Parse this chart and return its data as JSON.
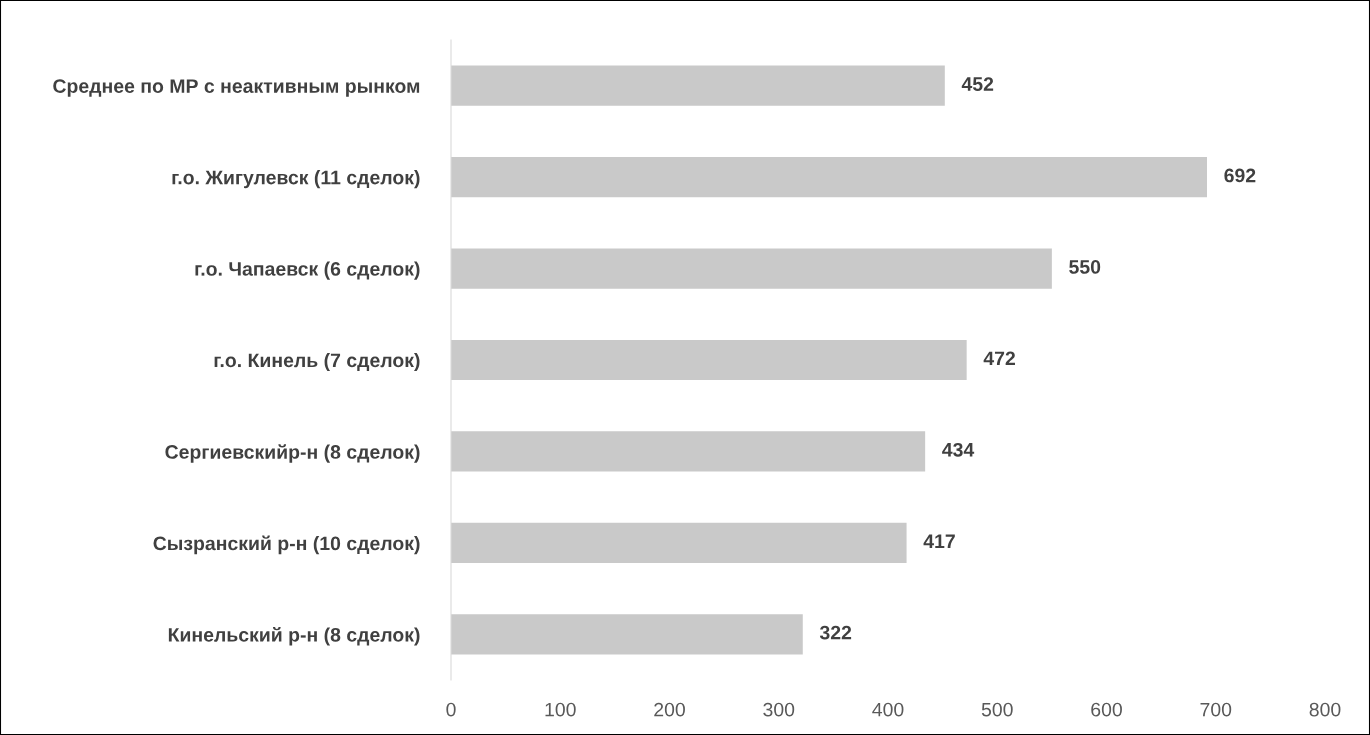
{
  "chart_data": {
    "type": "bar",
    "orientation": "horizontal",
    "categories": [
      "Среднее по МР с неактивным рынком",
      "г.о. Жигулевск (11 сделок)",
      "г.о. Чапаевск (6 сделок)",
      "г.о. Кинель (7 сделок)",
      "Сергиевскийр-н (8 сделок)",
      "Сызранский р-н (10 сделок)",
      "Кинельский р-н (8 сделок)"
    ],
    "values": [
      452,
      692,
      550,
      472,
      434,
      417,
      322
    ],
    "color": "#c9c9c9",
    "xlim": [
      0,
      800
    ],
    "xticks": [
      0,
      100,
      200,
      300,
      400,
      500,
      600,
      700,
      800
    ],
    "grid": false,
    "legend": false,
    "data_labels": true
  }
}
